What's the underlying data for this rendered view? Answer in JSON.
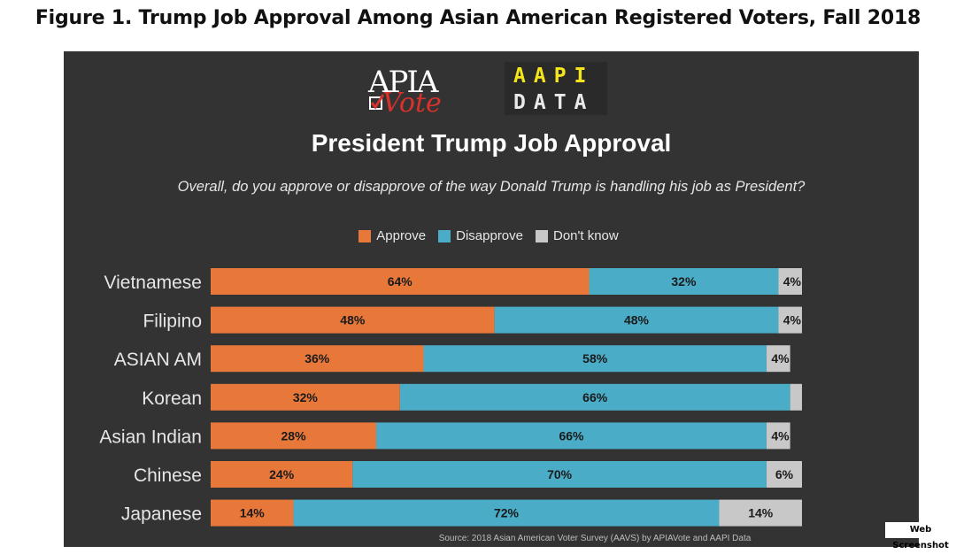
{
  "figure_title": "Figure 1.  Trump Job Approval Among Asian American Registered Voters, Fall 2018",
  "logos": {
    "apia_top": "APIA",
    "apia_bottom": "Vote",
    "aapi_line1": "AAPI",
    "aapi_line2": "DATA"
  },
  "source_note": "Source: 2018 Asian American Voter Survey (AAVS) by APIAVote and AAPI Data",
  "badge": "Web Screenshot",
  "colors": {
    "approve": "#e8783a",
    "disapprove": "#4aacc6",
    "dontknow": "#c8c8c8",
    "panel": "#333333"
  },
  "chart_data": {
    "type": "bar",
    "orientation": "horizontal",
    "stacked": true,
    "title": "President Trump Job Approval",
    "subtitle": "Overall, do you approve or disapprove of the way Donald Trump is handling his job as President?",
    "legend_position": "top",
    "categories": [
      "Vietnamese",
      "Filipino",
      "ASIAN AM",
      "Korean",
      "Asian Indian",
      "Chinese",
      "Japanese"
    ],
    "series": [
      {
        "name": "Approve",
        "color": "#e8783a",
        "values": [
          64,
          48,
          36,
          32,
          28,
          24,
          14
        ],
        "labels": [
          "64%",
          "48%",
          "36%",
          "32%",
          "28%",
          "24%",
          "14%"
        ]
      },
      {
        "name": "Disapprove",
        "color": "#4aacc6",
        "values": [
          32,
          48,
          58,
          66,
          66,
          70,
          72
        ],
        "labels": [
          "32%",
          "48%",
          "58%",
          "66%",
          "66%",
          "70%",
          "72%"
        ]
      },
      {
        "name": "Don't know",
        "color": "#c8c8c8",
        "values": [
          4,
          4,
          4,
          2,
          4,
          6,
          14
        ],
        "labels": [
          "4%",
          "4%",
          "4%",
          "",
          "4%",
          "6%",
          "14%"
        ]
      }
    ],
    "xlim": [
      0,
      100
    ]
  }
}
